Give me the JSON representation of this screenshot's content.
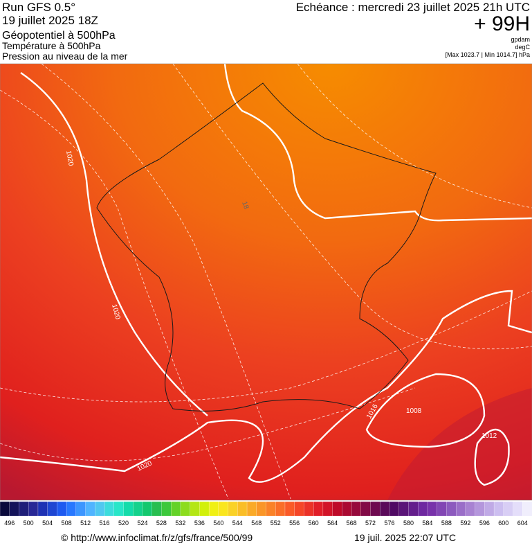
{
  "header": {
    "run": "Run GFS 0.5°",
    "run_date": "19 juillet 2025 18Z",
    "title": "Géopotentiel à 500hPa",
    "subtitle1": "Température à 500hPa",
    "subtitle2": "Pression au niveau de la mer",
    "valid": "Echéance : mercredi 23 juillet 2025 21h UTC",
    "lead": "+ 99H",
    "unit1": "gpdam",
    "unit2": "degC",
    "range": "[Max 1023.7 | Min 1014.7] hPa"
  },
  "map": {
    "contour_labels": [
      "1020",
      "1020",
      "1020",
      "1016",
      "1008",
      "1012",
      "18"
    ]
  },
  "colorbar": {
    "labels": [
      "496",
      "500",
      "504",
      "508",
      "512",
      "516",
      "520",
      "524",
      "528",
      "532",
      "536",
      "540",
      "544",
      "548",
      "552",
      "556",
      "560",
      "564",
      "568",
      "572",
      "576",
      "580",
      "584",
      "588",
      "592",
      "596",
      "600",
      "604"
    ],
    "colors": [
      "#0a0a3c",
      "#14145a",
      "#1e1e78",
      "#282896",
      "#1e32b4",
      "#1e46d2",
      "#1e5af0",
      "#2878ff",
      "#3c96ff",
      "#50b4ff",
      "#50c8f0",
      "#3cdcdc",
      "#28e6c8",
      "#14dcaa",
      "#14d28c",
      "#14c86e",
      "#28be50",
      "#3cc83c",
      "#64d228",
      "#8cdc1e",
      "#b4e614",
      "#d2f00a",
      "#f0f014",
      "#fae61e",
      "#fad228",
      "#fabe28",
      "#faaa28",
      "#fa9628",
      "#fa8228",
      "#fa6e28",
      "#fa5a28",
      "#f54628",
      "#eb3228",
      "#e11e28",
      "#d21428",
      "#be0a28",
      "#aa0a32",
      "#960a3c",
      "#820a46",
      "#6e0a50",
      "#5a0a5a",
      "#500a64",
      "#5a1478",
      "#641e8c",
      "#6e28a0",
      "#7832aa",
      "#8246b4",
      "#8c5abe",
      "#9a6ec8",
      "#a882d2",
      "#b496dc",
      "#c0aae6",
      "#ccbef0",
      "#d8cef5",
      "#e4defa",
      "#f0eefc"
    ]
  },
  "footer": {
    "url": "© http://www.infoclimat.fr/z/gfs/france/500/99",
    "timestamp": "19 juil. 2025 22:07 UTC"
  }
}
